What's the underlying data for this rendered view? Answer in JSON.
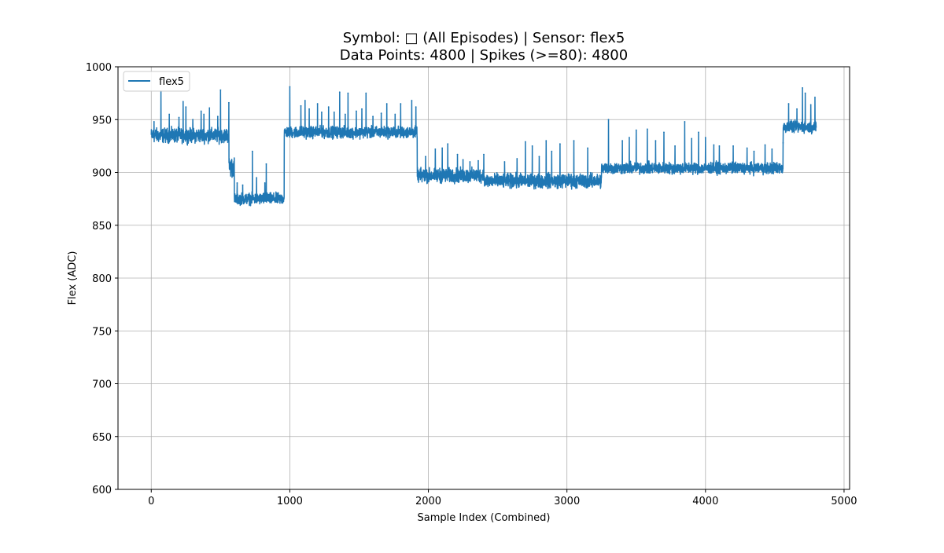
{
  "chart_data": {
    "type": "line",
    "title_line1": "Symbol: □ (All Episodes) | Sensor: flex5",
    "title_line2": "Data Points: 4800 | Spikes (>=80): 4800",
    "xlabel": "Sample Index (Combined)",
    "ylabel": "Flex (ADC)",
    "xlim": [
      -240,
      5040
    ],
    "ylim": [
      600,
      1000
    ],
    "xticks": [
      0,
      1000,
      2000,
      3000,
      4000,
      5000
    ],
    "yticks": [
      600,
      650,
      700,
      750,
      800,
      850,
      900,
      950,
      1000
    ],
    "grid": true,
    "legend_position": "top-left",
    "series": [
      {
        "name": "flex5",
        "color": "#1f77b4",
        "segments": [
          {
            "x_start": 0,
            "x_end": 560,
            "level": 935,
            "noise": 5
          },
          {
            "x_start": 560,
            "x_end": 600,
            "level": 905,
            "noise": 7
          },
          {
            "x_start": 600,
            "x_end": 960,
            "level": 875,
            "noise": 4
          },
          {
            "x_start": 960,
            "x_end": 1920,
            "level": 938,
            "noise": 4
          },
          {
            "x_start": 1920,
            "x_end": 2400,
            "level": 897,
            "noise": 5
          },
          {
            "x_start": 2400,
            "x_end": 3250,
            "level": 892,
            "noise": 5
          },
          {
            "x_start": 3250,
            "x_end": 4560,
            "level": 904,
            "noise": 4
          },
          {
            "x_start": 4560,
            "x_end": 4800,
            "level": 943,
            "noise": 4
          }
        ],
        "spikes": [
          [
            20,
            948
          ],
          [
            70,
            977
          ],
          [
            130,
            955
          ],
          [
            200,
            952
          ],
          [
            230,
            967
          ],
          [
            250,
            962
          ],
          [
            300,
            950
          ],
          [
            360,
            958
          ],
          [
            380,
            955
          ],
          [
            420,
            961
          ],
          [
            480,
            953
          ],
          [
            500,
            978
          ],
          [
            560,
            966
          ],
          [
            620,
            890
          ],
          [
            660,
            888
          ],
          [
            730,
            920
          ],
          [
            760,
            895
          ],
          [
            820,
            890
          ],
          [
            830,
            908
          ],
          [
            1000,
            981
          ],
          [
            1080,
            963
          ],
          [
            1110,
            968
          ],
          [
            1140,
            960
          ],
          [
            1200,
            965
          ],
          [
            1230,
            957
          ],
          [
            1280,
            962
          ],
          [
            1320,
            957
          ],
          [
            1360,
            976
          ],
          [
            1400,
            955
          ],
          [
            1420,
            975
          ],
          [
            1480,
            958
          ],
          [
            1520,
            960
          ],
          [
            1550,
            975
          ],
          [
            1600,
            953
          ],
          [
            1660,
            956
          ],
          [
            1700,
            965
          ],
          [
            1760,
            955
          ],
          [
            1800,
            965
          ],
          [
            1880,
            968
          ],
          [
            1910,
            962
          ],
          [
            1980,
            915
          ],
          [
            2050,
            922
          ],
          [
            2100,
            923
          ],
          [
            2140,
            927
          ],
          [
            2210,
            917
          ],
          [
            2250,
            912
          ],
          [
            2300,
            910
          ],
          [
            2360,
            911
          ],
          [
            2400,
            917
          ],
          [
            2550,
            910
          ],
          [
            2640,
            913
          ],
          [
            2700,
            929
          ],
          [
            2750,
            925
          ],
          [
            2800,
            915
          ],
          [
            2850,
            930
          ],
          [
            2890,
            920
          ],
          [
            2950,
            927
          ],
          [
            3050,
            930
          ],
          [
            3150,
            923
          ],
          [
            3300,
            950
          ],
          [
            3400,
            930
          ],
          [
            3450,
            933
          ],
          [
            3500,
            940
          ],
          [
            3580,
            941
          ],
          [
            3640,
            930
          ],
          [
            3700,
            938
          ],
          [
            3780,
            925
          ],
          [
            3850,
            948
          ],
          [
            3900,
            932
          ],
          [
            3950,
            938
          ],
          [
            4000,
            933
          ],
          [
            4060,
            926
          ],
          [
            4100,
            925
          ],
          [
            4200,
            925
          ],
          [
            4300,
            923
          ],
          [
            4350,
            920
          ],
          [
            4430,
            926
          ],
          [
            4480,
            922
          ],
          [
            4560,
            928
          ],
          [
            4600,
            965
          ],
          [
            4660,
            960
          ],
          [
            4700,
            980
          ],
          [
            4720,
            975
          ],
          [
            4760,
            964
          ],
          [
            4790,
            971
          ]
        ]
      }
    ]
  }
}
